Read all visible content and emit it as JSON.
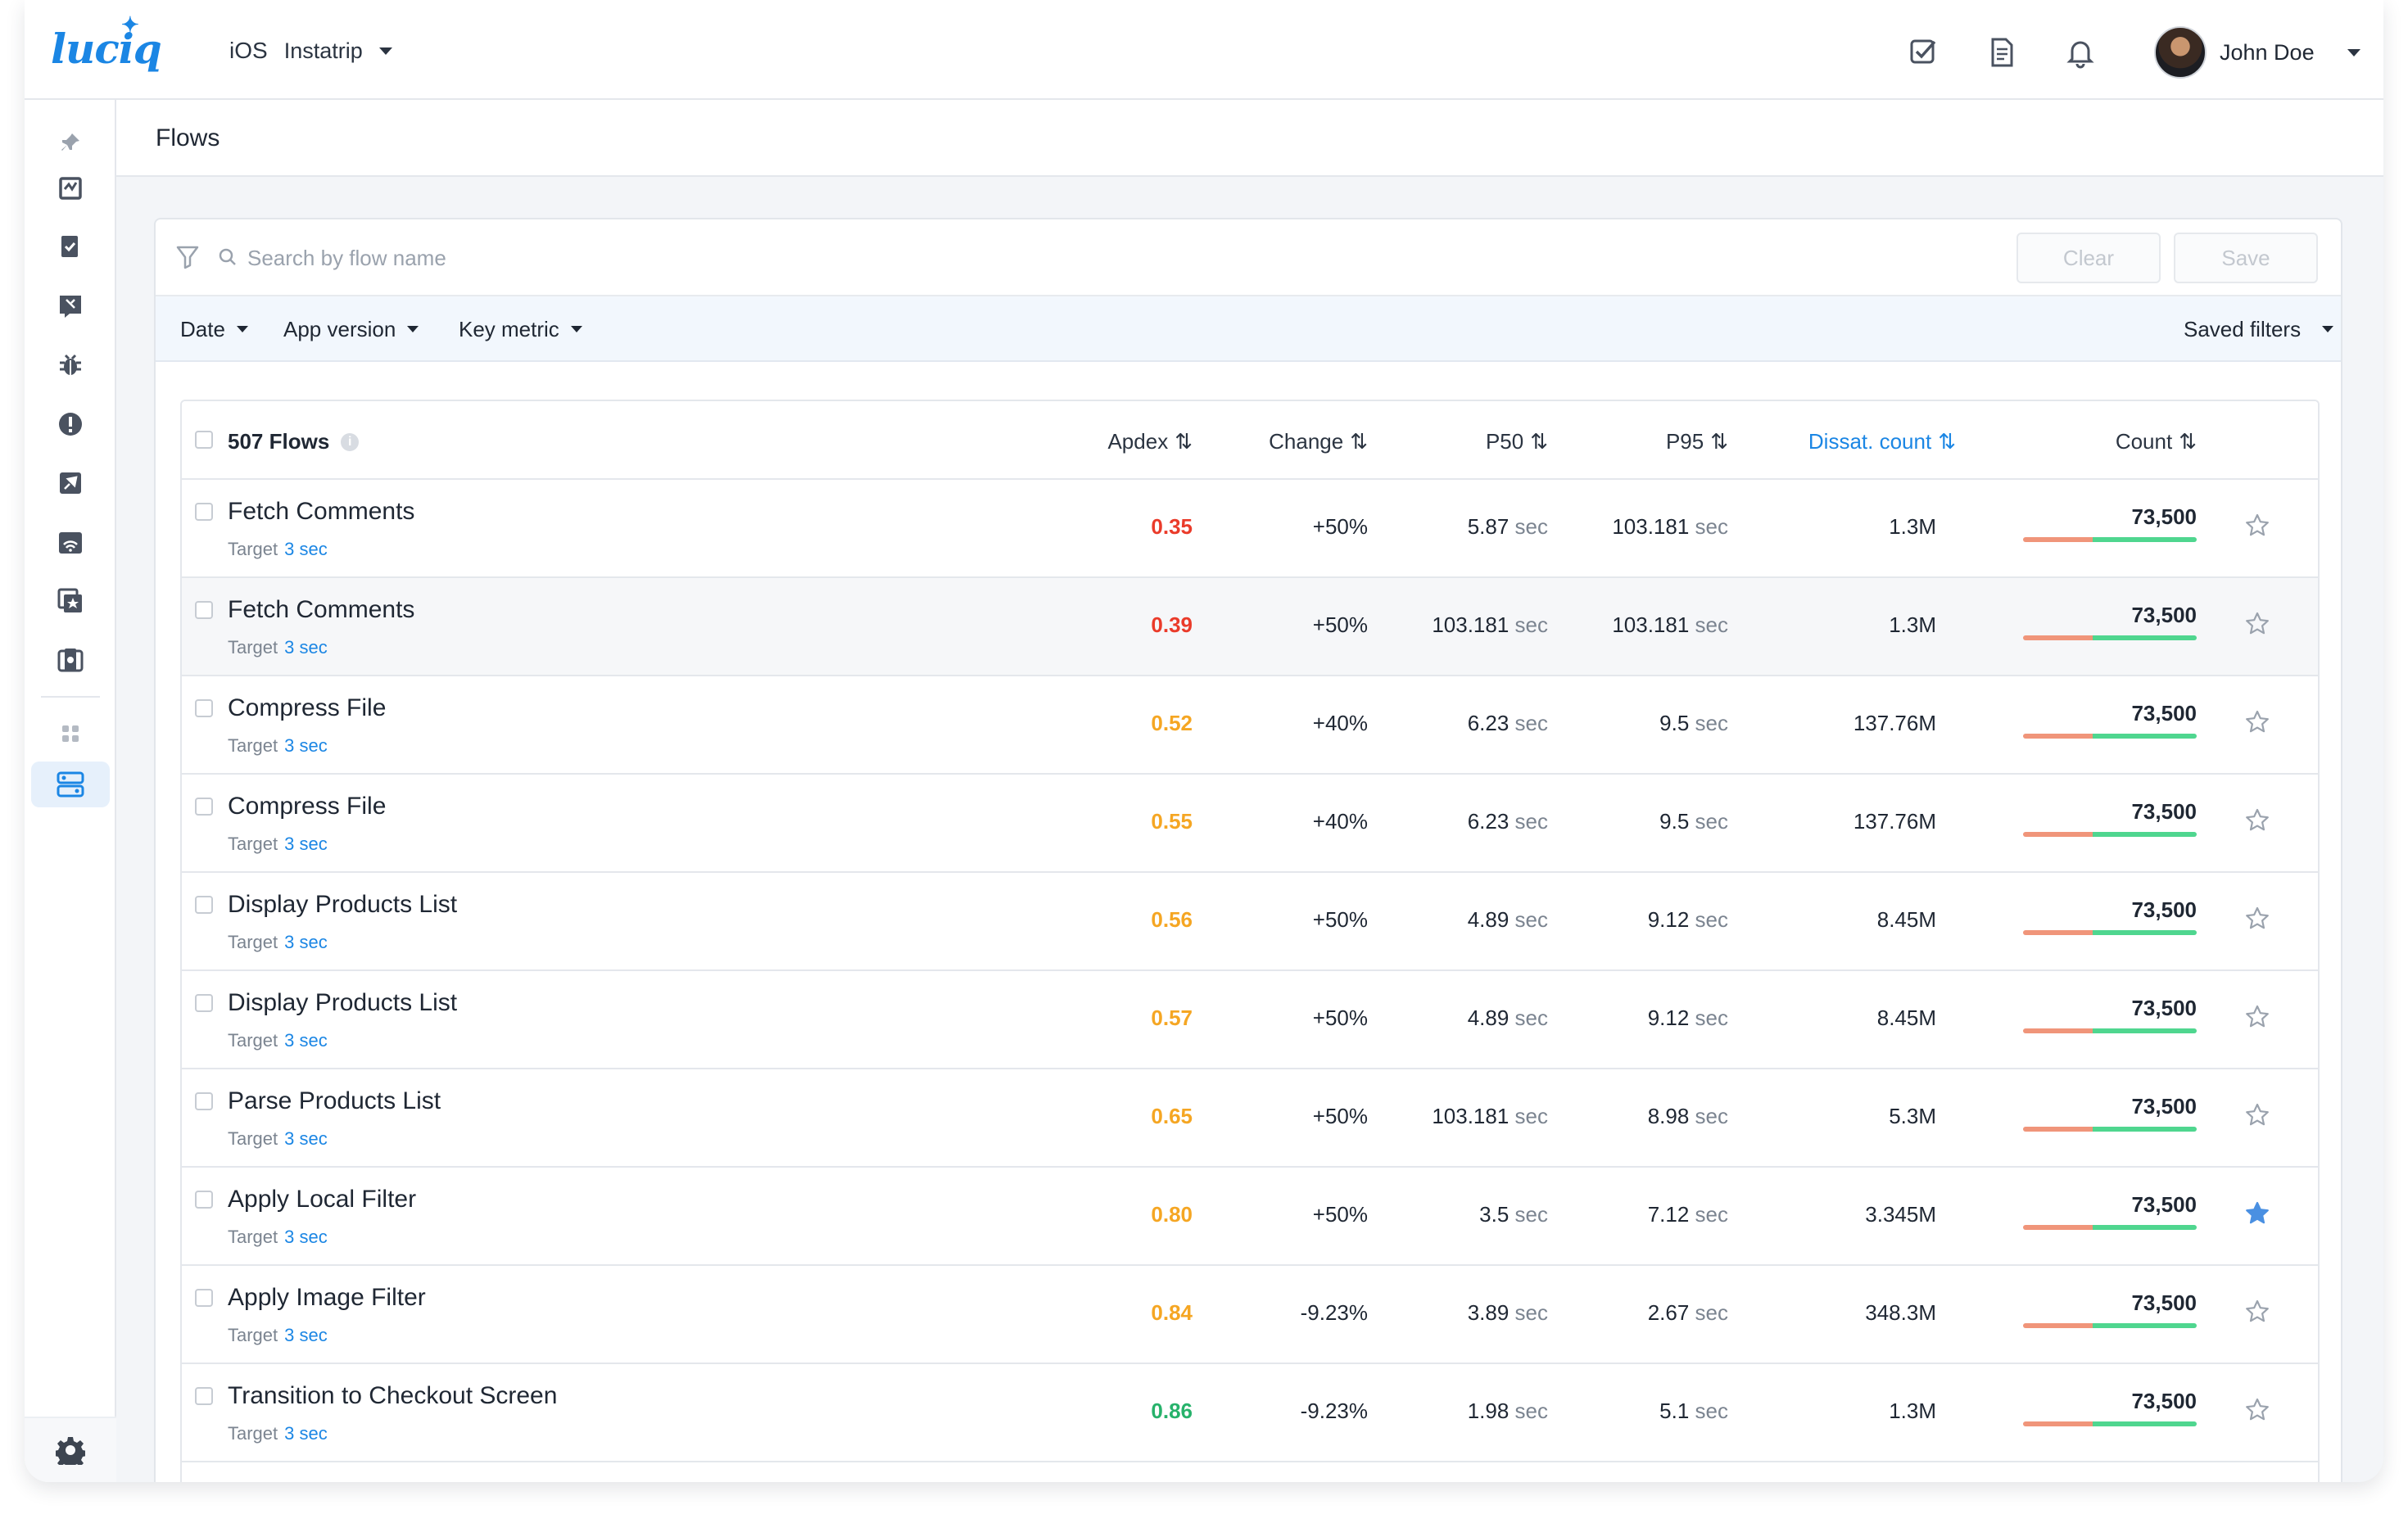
{
  "header": {
    "logo_text": "luciq",
    "platform": "iOS",
    "app_name": "Instatrip",
    "icons": [
      "checklist-icon",
      "document-icon",
      "bell-icon"
    ],
    "user_name": "John Doe"
  },
  "sidebar": {
    "items": [
      "pin-icon",
      "app-health-icon",
      "reports-icon",
      "feedback-icon",
      "bug-icon",
      "crash-icon",
      "launch-icon",
      "network-icon",
      "screens-icon",
      "sessions-icon",
      "apps-grid-icon",
      "flows-icon"
    ],
    "active": "flows-icon"
  },
  "page": {
    "title": "Flows"
  },
  "search": {
    "placeholder": "Search by flow name",
    "clear_label": "Clear",
    "save_label": "Save"
  },
  "filters": {
    "date": "Date",
    "app_version": "App version",
    "key_metric": "Key metric",
    "saved_filters": "Saved filters"
  },
  "table": {
    "flows_count": "507 Flows",
    "columns": {
      "apdex": "Apdex",
      "change": "Change",
      "p50": "P50",
      "p95": "P95",
      "dissat": "Dissat. count",
      "count": "Count"
    },
    "target_label": "Target",
    "unit": "sec",
    "rows": [
      {
        "name": "Fetch Comments",
        "target": "3 sec",
        "apdex": "0.35",
        "apdex_color": "#ea3b2a",
        "change": "+50%",
        "p50": "5.87",
        "p95": "103.181",
        "dissat": "1.3M",
        "count": "73,500",
        "starred": false,
        "highlight": false
      },
      {
        "name": "Fetch Comments",
        "target": "3 sec",
        "apdex": "0.39",
        "apdex_color": "#ea3b2a",
        "change": "+50%",
        "p50": "103.181",
        "p95": "103.181",
        "dissat": "1.3M",
        "count": "73,500",
        "starred": false,
        "highlight": true
      },
      {
        "name": "Compress File",
        "target": "3 sec",
        "apdex": "0.52",
        "apdex_color": "#f5a623",
        "change": "+40%",
        "p50": "6.23",
        "p95": "9.5",
        "dissat": "137.76M",
        "count": "73,500",
        "starred": false,
        "highlight": false
      },
      {
        "name": "Compress File",
        "target": "3 sec",
        "apdex": "0.55",
        "apdex_color": "#f5a623",
        "change": "+40%",
        "p50": "6.23",
        "p95": "9.5",
        "dissat": "137.76M",
        "count": "73,500",
        "starred": false,
        "highlight": false
      },
      {
        "name": "Display Products List",
        "target": "3 sec",
        "apdex": "0.56",
        "apdex_color": "#f5a623",
        "change": "+50%",
        "p50": "4.89",
        "p95": "9.12",
        "dissat": "8.45M",
        "count": "73,500",
        "starred": false,
        "highlight": false
      },
      {
        "name": "Display Products List",
        "target": "3 sec",
        "apdex": "0.57",
        "apdex_color": "#f5a623",
        "change": "+50%",
        "p50": "4.89",
        "p95": "9.12",
        "dissat": "8.45M",
        "count": "73,500",
        "starred": false,
        "highlight": false
      },
      {
        "name": "Parse Products List",
        "target": "3 sec",
        "apdex": "0.65",
        "apdex_color": "#f5a623",
        "change": "+50%",
        "p50": "103.181",
        "p95": "8.98",
        "dissat": "5.3M",
        "count": "73,500",
        "starred": false,
        "highlight": false
      },
      {
        "name": "Apply Local Filter",
        "target": "3 sec",
        "apdex": "0.80",
        "apdex_color": "#f5a623",
        "change": "+50%",
        "p50": "3.5",
        "p95": "7.12",
        "dissat": "3.345M",
        "count": "73,500",
        "starred": true,
        "highlight": false
      },
      {
        "name": "Apply Image Filter",
        "target": "3 sec",
        "apdex": "0.84",
        "apdex_color": "#f5a623",
        "change": "-9.23%",
        "p50": "3.89",
        "p95": "2.67",
        "dissat": "348.3M",
        "count": "73,500",
        "starred": false,
        "highlight": false
      },
      {
        "name": "Transition to Checkout Screen",
        "target": "3 sec",
        "apdex": "0.86",
        "apdex_color": "#27b26b",
        "change": "-9.23%",
        "p50": "1.98",
        "p95": "5.1",
        "dissat": "1.3M",
        "count": "73,500",
        "starred": false,
        "highlight": false
      }
    ],
    "count_bar": {
      "dissatisfied_fraction": 0.4,
      "dissatisfied_color": "#f0957a",
      "satisfied_color": "#4fd68f"
    }
  },
  "colors": {
    "accent": "#1b86e4",
    "star_active": "#4a90e2"
  }
}
